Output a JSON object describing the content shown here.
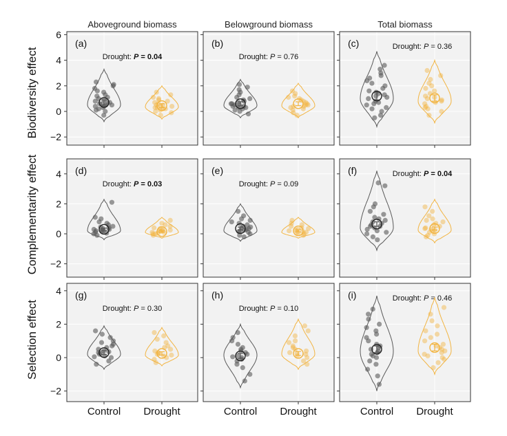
{
  "columns": [
    "Aboveground biomass",
    "Belowground biomass",
    "Total biomass"
  ],
  "rows": [
    "Biodiversity effect",
    "Complementarity effect",
    "Selection effect"
  ],
  "x_categories": [
    "Control",
    "Drought"
  ],
  "colors": {
    "control": "#595959",
    "drought": "#f2b441",
    "panel_bg": "#f2f2f2",
    "grid": "#ffffff"
  },
  "chart_data": [
    {
      "type": "violin",
      "panel": "(a)",
      "row": "Biodiversity effect",
      "column": "Aboveground biomass",
      "ylim": [
        -2.5,
        6.5
      ],
      "yticks": [
        -2,
        0,
        2,
        4,
        6
      ],
      "yticklabels": [
        "−2",
        "0",
        "2",
        "4",
        "6"
      ],
      "annotation": {
        "label": "Drought: ",
        "p_label": "P",
        "p_value": " = 0.04",
        "bold": true
      },
      "series": [
        {
          "name": "Control",
          "mean": 0.7,
          "se": 0.2,
          "min": -0.8,
          "max": 3.3,
          "mode": 0.5,
          "points": [
            -0.3,
            0.0,
            0.1,
            0.2,
            0.3,
            0.4,
            0.4,
            0.5,
            0.5,
            0.6,
            0.6,
            0.7,
            0.7,
            0.8,
            0.9,
            1.0,
            1.1,
            1.2,
            1.3,
            1.5,
            1.6,
            1.8,
            2.0,
            2.1,
            2.3
          ]
        },
        {
          "name": "Drought",
          "mean": 0.45,
          "se": 0.15,
          "min": -0.6,
          "max": 2.0,
          "mode": 0.35,
          "points": [
            -0.3,
            -0.1,
            0.0,
            0.1,
            0.2,
            0.2,
            0.3,
            0.3,
            0.4,
            0.4,
            0.5,
            0.5,
            0.6,
            0.7,
            0.8,
            0.9,
            1.0,
            1.1,
            1.3,
            1.5
          ]
        }
      ]
    },
    {
      "type": "violin",
      "panel": "(b)",
      "row": "Biodiversity effect",
      "column": "Belowground biomass",
      "ylim": [
        -2.5,
        6.5
      ],
      "yticks": [
        -2,
        0,
        2,
        4,
        6
      ],
      "yticklabels": [
        "−2",
        "0",
        "2",
        "4",
        "6"
      ],
      "annotation": {
        "label": "Drought: ",
        "p_label": "P",
        "p_value": " = 0.76",
        "bold": false
      },
      "series": [
        {
          "name": "Control",
          "mean": 0.6,
          "se": 0.15,
          "min": -0.5,
          "max": 2.5,
          "mode": 0.45,
          "points": [
            -0.2,
            0.0,
            0.1,
            0.2,
            0.3,
            0.3,
            0.4,
            0.4,
            0.5,
            0.5,
            0.6,
            0.6,
            0.7,
            0.8,
            0.9,
            1.0,
            1.1,
            1.3,
            1.5,
            1.7,
            1.9,
            2.1
          ]
        },
        {
          "name": "Drought",
          "mean": 0.6,
          "se": 0.15,
          "min": -0.5,
          "max": 2.2,
          "mode": 0.45,
          "points": [
            -0.3,
            -0.1,
            0.1,
            0.2,
            0.3,
            0.4,
            0.4,
            0.5,
            0.5,
            0.6,
            0.7,
            0.8,
            0.9,
            1.0,
            1.1,
            1.2,
            1.4,
            1.6
          ]
        }
      ]
    },
    {
      "type": "violin",
      "panel": "(c)",
      "row": "Biodiversity effect",
      "column": "Total biomass",
      "ylim": [
        -2.5,
        6.5
      ],
      "yticks": [
        -2,
        0,
        2,
        4,
        6
      ],
      "yticklabels": [
        "−2",
        "0",
        "2",
        "4",
        "6"
      ],
      "annotation": {
        "label": "Drought: ",
        "p_label": "P",
        "p_value": " = 0.36",
        "bold": false
      },
      "series": [
        {
          "name": "Control",
          "mean": 1.2,
          "se": 0.3,
          "min": -1.2,
          "max": 4.7,
          "mode": 1.0,
          "points": [
            -0.5,
            -0.3,
            0.0,
            0.2,
            0.3,
            0.5,
            0.6,
            0.7,
            0.8,
            1.0,
            1.1,
            1.2,
            1.3,
            1.4,
            1.5,
            1.6,
            1.8,
            2.0,
            2.2,
            2.4,
            2.6,
            2.8,
            3.0,
            3.3,
            3.6
          ]
        },
        {
          "name": "Drought",
          "mean": 1.05,
          "se": 0.25,
          "min": -0.9,
          "max": 4.0,
          "mode": 0.8,
          "points": [
            -0.3,
            0.0,
            0.2,
            0.3,
            0.4,
            0.6,
            0.7,
            0.8,
            0.9,
            1.0,
            1.1,
            1.2,
            1.4,
            1.6,
            1.8,
            2.0,
            2.2,
            2.5,
            2.8,
            3.2
          ]
        }
      ]
    },
    {
      "type": "violin",
      "panel": "(d)",
      "row": "Complementarity effect",
      "column": "Aboveground biomass",
      "ylim": [
        -2.5,
        4.5
      ],
      "yticks": [
        -2,
        0,
        2,
        4
      ],
      "yticklabels": [
        "−2",
        "0",
        "2",
        "4"
      ],
      "annotation": {
        "label": "Drought: ",
        "p_label": "P",
        "p_value": " = 0.03",
        "bold": true
      },
      "series": [
        {
          "name": "Control",
          "mean": 0.3,
          "se": 0.08,
          "min": -0.4,
          "max": 2.3,
          "mode": 0.2,
          "points": [
            -0.1,
            0.0,
            0.05,
            0.1,
            0.15,
            0.2,
            0.2,
            0.25,
            0.3,
            0.3,
            0.35,
            0.4,
            0.45,
            0.5,
            0.6,
            0.7,
            0.8,
            1.0,
            1.1,
            2.1
          ]
        },
        {
          "name": "Drought",
          "mean": 0.15,
          "se": 0.05,
          "min": -0.3,
          "max": 1.1,
          "mode": 0.1,
          "points": [
            -0.1,
            0.0,
            0.0,
            0.05,
            0.1,
            0.1,
            0.15,
            0.2,
            0.2,
            0.25,
            0.3,
            0.35,
            0.4,
            0.5,
            0.6,
            0.7,
            0.9
          ]
        }
      ]
    },
    {
      "type": "violin",
      "panel": "(e)",
      "row": "Complementarity effect",
      "column": "Belowground biomass",
      "ylim": [
        -2.5,
        4.5
      ],
      "yticks": [
        -2,
        0,
        2,
        4
      ],
      "yticklabels": [
        "−2",
        "0",
        "2",
        "4"
      ],
      "annotation": {
        "label": "Drought: ",
        "p_label": "P",
        "p_value": " = 0.09",
        "bold": false
      },
      "series": [
        {
          "name": "Control",
          "mean": 0.35,
          "se": 0.1,
          "min": -0.5,
          "max": 2.0,
          "mode": 0.2,
          "points": [
            -0.2,
            -0.1,
            0.0,
            0.1,
            0.15,
            0.2,
            0.25,
            0.3,
            0.35,
            0.4,
            0.45,
            0.5,
            0.6,
            0.7,
            0.8,
            0.9,
            1.0,
            1.2,
            1.5
          ]
        },
        {
          "name": "Drought",
          "mean": 0.2,
          "se": 0.07,
          "min": -0.3,
          "max": 1.1,
          "mode": 0.1,
          "points": [
            -0.1,
            0.0,
            0.05,
            0.1,
            0.1,
            0.15,
            0.2,
            0.25,
            0.3,
            0.35,
            0.4,
            0.5,
            0.6,
            0.7,
            0.9
          ]
        }
      ]
    },
    {
      "type": "violin",
      "panel": "(f)",
      "row": "Complementarity effect",
      "column": "Total biomass",
      "ylim": [
        -2.5,
        4.5
      ],
      "yticks": [
        -2,
        0,
        2,
        4
      ],
      "yticklabels": [
        "−2",
        "0",
        "2",
        "4"
      ],
      "annotation": {
        "label": "Drought: ",
        "p_label": "P",
        "p_value": " = 0.04",
        "bold": true
      },
      "series": [
        {
          "name": "Control",
          "mean": 0.65,
          "se": 0.15,
          "min": -1.1,
          "max": 4.2,
          "mode": 0.4,
          "points": [
            -0.4,
            -0.2,
            0.0,
            0.1,
            0.2,
            0.3,
            0.4,
            0.5,
            0.5,
            0.6,
            0.7,
            0.8,
            0.9,
            1.0,
            1.1,
            1.3,
            1.5,
            1.8,
            2.0,
            3.2,
            3.4
          ]
        },
        {
          "name": "Drought",
          "mean": 0.35,
          "se": 0.1,
          "min": -0.6,
          "max": 2.3,
          "mode": 0.25,
          "points": [
            -0.2,
            -0.1,
            0.0,
            0.1,
            0.2,
            0.25,
            0.3,
            0.35,
            0.4,
            0.5,
            0.6,
            0.7,
            0.8,
            0.9,
            1.0,
            1.2,
            1.5,
            1.8
          ]
        }
      ]
    },
    {
      "type": "violin",
      "panel": "(g)",
      "row": "Selection effect",
      "column": "Aboveground biomass",
      "ylim": [
        -2.5,
        4.5
      ],
      "yticks": [
        -2,
        0,
        2,
        4
      ],
      "yticklabels": [
        "−2",
        "0",
        "2",
        "4"
      ],
      "annotation": {
        "label": "Drought: ",
        "p_label": "P",
        "p_value": " = 0.30",
        "bold": false
      },
      "series": [
        {
          "name": "Control",
          "mean": 0.3,
          "se": 0.12,
          "min": -0.7,
          "max": 1.9,
          "mode": 0.2,
          "points": [
            -0.4,
            -0.2,
            0.0,
            0.05,
            0.1,
            0.2,
            0.25,
            0.3,
            0.35,
            0.4,
            0.5,
            0.6,
            0.7,
            0.8,
            0.9,
            1.0,
            1.2,
            1.4,
            1.6
          ]
        },
        {
          "name": "Drought",
          "mean": 0.25,
          "se": 0.1,
          "min": -0.5,
          "max": 1.8,
          "mode": 0.15,
          "points": [
            -0.3,
            -0.1,
            0.0,
            0.1,
            0.15,
            0.2,
            0.25,
            0.3,
            0.4,
            0.5,
            0.6,
            0.7,
            0.9,
            1.1,
            1.3,
            1.5
          ]
        }
      ]
    },
    {
      "type": "violin",
      "panel": "(h)",
      "row": "Selection effect",
      "column": "Belowground biomass",
      "ylim": [
        -2.5,
        4.5
      ],
      "yticks": [
        -2,
        0,
        2,
        4
      ],
      "yticklabels": [
        "−2",
        "0",
        "2",
        "4"
      ],
      "annotation": {
        "label": "Drought: ",
        "p_label": "P",
        "p_value": " = 0.10",
        "bold": false
      },
      "series": [
        {
          "name": "Control",
          "mean": 0.1,
          "se": 0.15,
          "min": -1.8,
          "max": 2.0,
          "mode": 0.15,
          "points": [
            -1.4,
            -1.0,
            -0.6,
            -0.4,
            -0.2,
            -0.1,
            0.0,
            0.05,
            0.1,
            0.2,
            0.3,
            0.4,
            0.5,
            0.6,
            0.8,
            1.0,
            1.2,
            1.5
          ]
        },
        {
          "name": "Drought",
          "mean": 0.25,
          "se": 0.12,
          "min": -0.7,
          "max": 2.3,
          "mode": 0.2,
          "points": [
            -0.4,
            -0.2,
            0.0,
            0.1,
            0.2,
            0.25,
            0.3,
            0.4,
            0.5,
            0.6,
            0.7,
            0.9,
            1.0,
            1.3,
            1.6,
            1.9
          ]
        }
      ]
    },
    {
      "type": "violin",
      "panel": "(i)",
      "row": "Selection effect",
      "column": "Total biomass",
      "ylim": [
        -2.5,
        4.5
      ],
      "yticks": [
        -2,
        0,
        2,
        4
      ],
      "yticklabels": [
        "−2",
        "0",
        "2",
        "4"
      ],
      "annotation": {
        "label": "Drought: ",
        "p_label": "P",
        "p_value": " = 0.46",
        "bold": false
      },
      "series": [
        {
          "name": "Control",
          "mean": 0.5,
          "se": 0.2,
          "min": -2.0,
          "max": 3.7,
          "mode": 0.35,
          "points": [
            -1.6,
            -1.1,
            -0.7,
            -0.4,
            -0.2,
            0.0,
            0.1,
            0.2,
            0.3,
            0.4,
            0.5,
            0.6,
            0.7,
            0.8,
            1.0,
            1.2,
            1.4,
            1.6,
            1.8,
            2.0,
            2.3,
            2.6,
            2.9
          ]
        },
        {
          "name": "Drought",
          "mean": 0.6,
          "se": 0.2,
          "min": -1.0,
          "max": 3.6,
          "mode": 0.4,
          "points": [
            -0.6,
            -0.3,
            -0.1,
            0.0,
            0.1,
            0.2,
            0.3,
            0.4,
            0.5,
            0.6,
            0.7,
            0.8,
            1.0,
            1.2,
            1.4,
            1.6,
            1.9,
            2.2,
            2.6,
            3.0
          ]
        }
      ]
    }
  ]
}
